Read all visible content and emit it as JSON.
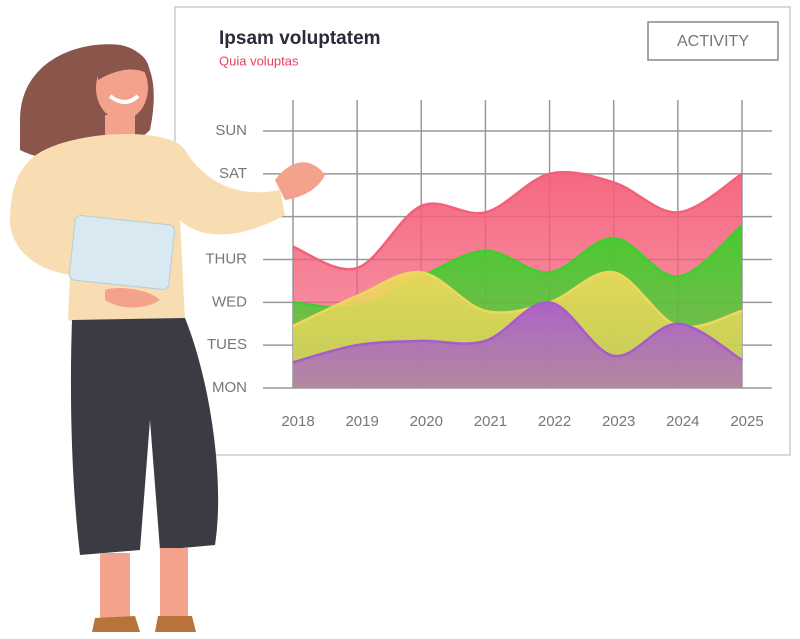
{
  "chart_data": {
    "type": "area",
    "title": "Ipsam voluptatem",
    "subtitle": "Quia voluptas",
    "button": "ACTIVITY",
    "categories": [
      "2018",
      "2019",
      "2020",
      "2021",
      "2022",
      "2023",
      "2024",
      "2025"
    ],
    "ylim": [
      0,
      6
    ],
    "yticks": [
      {
        "value": 0,
        "label": "MON"
      },
      {
        "value": 1,
        "label": "TUES"
      },
      {
        "value": 2,
        "label": "WED"
      },
      {
        "value": 3,
        "label": "THUR"
      },
      {
        "value": 4,
        "label": null
      },
      {
        "value": 5,
        "label": "SAT"
      },
      {
        "value": 6,
        "label": "SUN"
      }
    ],
    "grid": true,
    "series": [
      {
        "color": "#f4607a",
        "values": [
          3.3,
          2.8,
          4.25,
          4.1,
          5.0,
          4.8,
          4.1,
          5.0
        ]
      },
      {
        "color": "#3fcf2c",
        "values": [
          2.0,
          1.9,
          2.6,
          3.2,
          2.7,
          3.5,
          2.6,
          3.8
        ]
      },
      {
        "color": "#ecd85c",
        "values": [
          1.45,
          2.15,
          2.7,
          1.8,
          2.0,
          2.7,
          1.45,
          1.8
        ]
      },
      {
        "color": "#a85ccc",
        "values": [
          0.6,
          1.0,
          1.1,
          1.1,
          2.0,
          0.75,
          1.5,
          0.65
        ]
      }
    ]
  }
}
